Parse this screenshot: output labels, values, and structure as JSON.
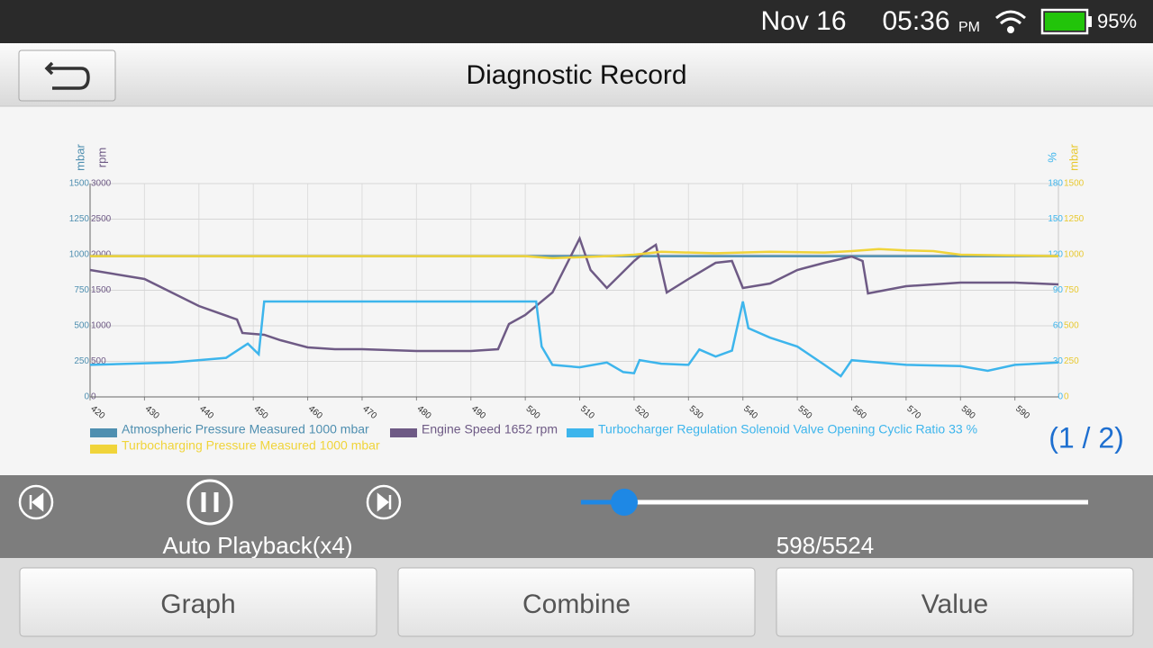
{
  "status_bar": {
    "date": "Nov 16",
    "time": "05:36",
    "meridiem": "PM",
    "battery": "95%"
  },
  "header": {
    "title": "Diagnostic Record"
  },
  "chart_data": {
    "type": "line",
    "grid": true,
    "xlim": [
      420,
      598
    ],
    "xticks": [
      420,
      430,
      440,
      450,
      460,
      470,
      480,
      490,
      500,
      510,
      520,
      530,
      540,
      550,
      560,
      570,
      580,
      590
    ],
    "axes": [
      {
        "title": "mbar",
        "side": "left",
        "color": "#4f8fb0",
        "lim": [
          0,
          1500
        ],
        "ticks": [
          0,
          250,
          500,
          750,
          1000,
          1250,
          1500
        ]
      },
      {
        "title": "rpm",
        "side": "left",
        "color": "#6e5a85",
        "lim": [
          0,
          3000
        ],
        "ticks": [
          0,
          500,
          1000,
          1500,
          2000,
          2500,
          3000
        ]
      },
      {
        "title": "%",
        "side": "right",
        "color": "#3db5ec",
        "lim": [
          0,
          180
        ],
        "ticks": [
          0,
          30,
          60,
          90,
          120,
          150,
          180
        ]
      },
      {
        "title": "mbar",
        "side": "right",
        "color": "#e8c930",
        "lim": [
          0,
          1500
        ],
        "ticks": [
          0,
          250,
          500,
          750,
          1000,
          1250,
          1500
        ]
      }
    ],
    "series": [
      {
        "name": "Atmospheric Pressure Measured 1000 mbar",
        "color": "#4f8fb0",
        "axis": 0,
        "x": [
          420,
          598
        ],
        "values": [
          990,
          990
        ]
      },
      {
        "name": "Engine Speed 1652 rpm",
        "color": "#6e5a85",
        "axis": 1,
        "x": [
          420,
          430,
          440,
          447,
          448,
          452,
          455,
          460,
          465,
          470,
          480,
          490,
          495,
          497,
          500,
          505,
          510,
          512,
          515,
          520,
          522,
          524,
          526,
          530,
          535,
          538,
          540,
          545,
          550,
          555,
          560,
          562,
          563,
          570,
          580,
          590,
          598
        ],
        "values": [
          1785,
          1658,
          1278,
          1089,
          899,
          873,
          797,
          696,
          671,
          671,
          646,
          646,
          671,
          1025,
          1152,
          1468,
          2228,
          1785,
          1532,
          1911,
          2038,
          2139,
          1468,
          1658,
          1886,
          1911,
          1532,
          1595,
          1785,
          1886,
          1975,
          1911,
          1456,
          1557,
          1608,
          1608,
          1582
        ]
      },
      {
        "name": "Turbocharger Regulation Solenoid Valve Opening Cyclic Ratio 33 %",
        "color": "#3db5ec",
        "axis": 2,
        "x": [
          420,
          435,
          445,
          449,
          451,
          452,
          470,
          490,
          502,
          503,
          505,
          510,
          515,
          518,
          520,
          521,
          525,
          530,
          532,
          535,
          538,
          540,
          541,
          545,
          550,
          555,
          558,
          560,
          570,
          580,
          585,
          590,
          598
        ],
        "values": [
          27,
          29,
          33,
          45,
          36,
          80.5,
          80.5,
          80.5,
          80.5,
          42.5,
          27,
          25,
          29,
          21,
          20,
          31,
          28,
          27,
          40,
          34,
          39,
          80.5,
          58,
          50,
          42.5,
          27,
          17.5,
          31,
          27,
          26,
          22,
          27,
          29
        ]
      },
      {
        "name": "Turbocharging Pressure Measured 1000 mbar",
        "color": "#f0d43a",
        "axis": 3,
        "x": [
          420,
          500,
          505,
          515,
          520,
          525,
          535,
          545,
          555,
          560,
          565,
          570,
          575,
          580,
          598
        ],
        "values": [
          990,
          990,
          975,
          990,
          1000,
          1020,
          1010,
          1020,
          1015,
          1025,
          1040,
          1030,
          1025,
          1000,
          990
        ]
      }
    ]
  },
  "pager": "(1 / 2)",
  "playback": {
    "mode": "Auto Playback(x4)",
    "counter": "598/5524"
  },
  "buttons": [
    "Graph",
    "Combine",
    "Value"
  ]
}
